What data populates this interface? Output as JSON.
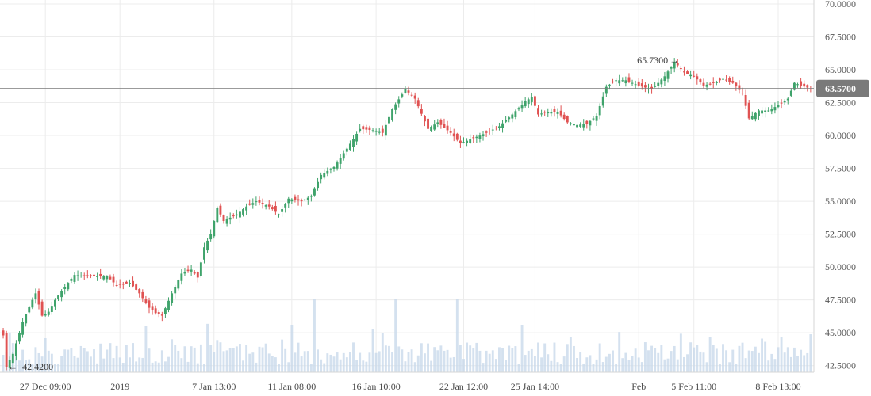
{
  "chart_data": {
    "type": "candlestick",
    "y_axis": {
      "range": [
        42.0,
        70.3
      ],
      "ticks": [
        "70.0000",
        "67.5000",
        "65.0000",
        "62.5000",
        "60.0000",
        "57.5000",
        "55.0000",
        "52.5000",
        "50.0000",
        "47.5000",
        "45.0000",
        "42.5000"
      ],
      "tick_values": [
        70.0,
        67.5,
        65.0,
        62.5,
        60.0,
        57.5,
        55.0,
        52.5,
        50.0,
        47.5,
        45.0,
        42.5
      ]
    },
    "x_axis": {
      "labels": [
        "27 Dec 09:00",
        "2019",
        "7 Jan 13:00",
        "11 Jan 08:00",
        "16 Jan 10:00",
        "22 Jan 12:00",
        "25 Jan 14:00",
        "Feb",
        "5 Feb 11:00",
        "8 Feb 13:00"
      ],
      "label_candle_index": [
        13,
        36,
        65,
        89,
        115,
        142,
        164,
        196,
        213,
        239
      ]
    },
    "last_price": {
      "value": 63.57,
      "label": "63.5700",
      "color": "#7a7a7a"
    },
    "annotations": {
      "high": {
        "value": 65.73,
        "label": "65.7300",
        "arrow": "→",
        "candle_index": 207
      },
      "low": {
        "value": 42.42,
        "label": "42.4200",
        "arrow": "←",
        "candle_index": 1
      }
    },
    "colors": {
      "up": "#3fa36b",
      "down": "#e05252",
      "volume": "#c6d7ea"
    },
    "grid": true,
    "candle_count": 250,
    "price_path": [
      {
        "i": 0,
        "v": 44.8
      },
      {
        "i": 1,
        "v": 42.42
      },
      {
        "i": 3,
        "v": 43.4
      },
      {
        "i": 6,
        "v": 45.8
      },
      {
        "i": 8,
        "v": 47.0
      },
      {
        "i": 10,
        "v": 48.0
      },
      {
        "i": 12,
        "v": 46.3
      },
      {
        "i": 14,
        "v": 46.6
      },
      {
        "i": 16,
        "v": 47.5
      },
      {
        "i": 19,
        "v": 48.5
      },
      {
        "i": 22,
        "v": 49.4
      },
      {
        "i": 26,
        "v": 49.3
      },
      {
        "i": 32,
        "v": 49.3
      },
      {
        "i": 35,
        "v": 48.6
      },
      {
        "i": 39,
        "v": 48.8
      },
      {
        "i": 42,
        "v": 48.0
      },
      {
        "i": 45,
        "v": 46.9
      },
      {
        "i": 47,
        "v": 46.5
      },
      {
        "i": 49,
        "v": 46.3
      },
      {
        "i": 52,
        "v": 48.0
      },
      {
        "i": 55,
        "v": 49.5
      },
      {
        "i": 58,
        "v": 49.8
      },
      {
        "i": 60,
        "v": 49.2
      },
      {
        "i": 62,
        "v": 51.5
      },
      {
        "i": 64,
        "v": 52.5
      },
      {
        "i": 66,
        "v": 54.5
      },
      {
        "i": 68,
        "v": 53.5
      },
      {
        "i": 72,
        "v": 54.0
      },
      {
        "i": 75,
        "v": 54.6
      },
      {
        "i": 78,
        "v": 55.0
      },
      {
        "i": 82,
        "v": 54.6
      },
      {
        "i": 85,
        "v": 54.0
      },
      {
        "i": 88,
        "v": 55.2
      },
      {
        "i": 92,
        "v": 55.0
      },
      {
        "i": 95,
        "v": 55.4
      },
      {
        "i": 98,
        "v": 57.0
      },
      {
        "i": 102,
        "v": 57.6
      },
      {
        "i": 106,
        "v": 59.0
      },
      {
        "i": 110,
        "v": 60.5
      },
      {
        "i": 114,
        "v": 60.4
      },
      {
        "i": 117,
        "v": 60.2
      },
      {
        "i": 120,
        "v": 62.0
      },
      {
        "i": 124,
        "v": 63.5
      },
      {
        "i": 127,
        "v": 62.8
      },
      {
        "i": 131,
        "v": 60.5
      },
      {
        "i": 134,
        "v": 61.0
      },
      {
        "i": 138,
        "v": 60.2
      },
      {
        "i": 141,
        "v": 59.4
      },
      {
        "i": 145,
        "v": 59.8
      },
      {
        "i": 149,
        "v": 60.2
      },
      {
        "i": 153,
        "v": 60.7
      },
      {
        "i": 157,
        "v": 61.6
      },
      {
        "i": 161,
        "v": 62.6
      },
      {
        "i": 163,
        "v": 62.9
      },
      {
        "i": 165,
        "v": 61.6
      },
      {
        "i": 168,
        "v": 61.8
      },
      {
        "i": 171,
        "v": 61.8
      },
      {
        "i": 174,
        "v": 61.0
      },
      {
        "i": 177,
        "v": 60.8
      },
      {
        "i": 180,
        "v": 60.9
      },
      {
        "i": 183,
        "v": 61.5
      },
      {
        "i": 186,
        "v": 63.7
      },
      {
        "i": 189,
        "v": 64.2
      },
      {
        "i": 192,
        "v": 64.2
      },
      {
        "i": 196,
        "v": 63.8
      },
      {
        "i": 200,
        "v": 63.5
      },
      {
        "i": 204,
        "v": 64.5
      },
      {
        "i": 207,
        "v": 65.6
      },
      {
        "i": 210,
        "v": 64.8
      },
      {
        "i": 213,
        "v": 64.5
      },
      {
        "i": 216,
        "v": 63.8
      },
      {
        "i": 219,
        "v": 64.0
      },
      {
        "i": 222,
        "v": 64.3
      },
      {
        "i": 225,
        "v": 64.0
      },
      {
        "i": 228,
        "v": 63.2
      },
      {
        "i": 230,
        "v": 61.3
      },
      {
        "i": 233,
        "v": 61.9
      },
      {
        "i": 236,
        "v": 61.9
      },
      {
        "i": 239,
        "v": 62.3
      },
      {
        "i": 242,
        "v": 62.8
      },
      {
        "i": 244,
        "v": 64.0
      },
      {
        "i": 246,
        "v": 63.8
      },
      {
        "i": 249,
        "v": 63.57
      }
    ]
  }
}
